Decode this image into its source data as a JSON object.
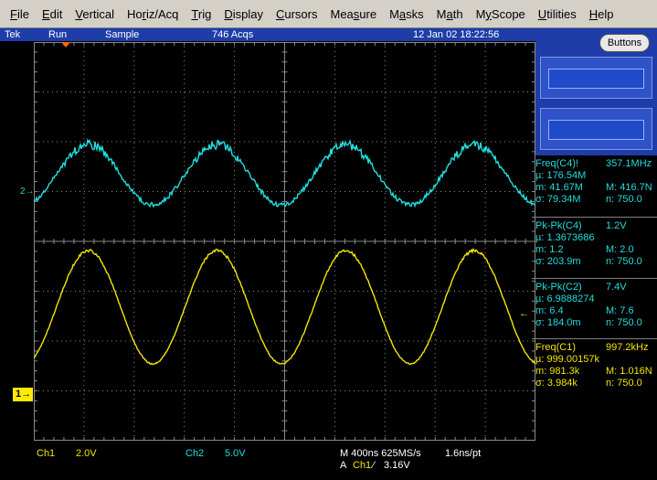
{
  "menu": [
    {
      "label": "File",
      "u": "F",
      "rest": "ile"
    },
    {
      "label": "Edit",
      "u": "E",
      "rest": "dit"
    },
    {
      "label": "Vertical",
      "u": "V",
      "rest": "ertical"
    },
    {
      "label": "Horiz/Acq",
      "pre": "Ho",
      "u": "r",
      "rest": "iz/Acq"
    },
    {
      "label": "Trig",
      "u": "T",
      "rest": "rig"
    },
    {
      "label": "Display",
      "u": "D",
      "rest": "isplay"
    },
    {
      "label": "Cursors",
      "u": "C",
      "rest": "ursors"
    },
    {
      "label": "Measure",
      "pre": "Mea",
      "u": "s",
      "rest": "ure"
    },
    {
      "label": "Masks",
      "pre": "M",
      "u": "a",
      "rest": "sks"
    },
    {
      "label": "Math",
      "pre": "M",
      "u": "a",
      "rest": "th"
    },
    {
      "label": "MyScope",
      "pre": "M",
      "u": "y",
      "rest": "Scope"
    },
    {
      "label": "Utilities",
      "u": "U",
      "rest": "tilities"
    },
    {
      "label": "Help",
      "u": "H",
      "rest": "elp"
    }
  ],
  "status": {
    "brand": "Tek",
    "run_state": "Run",
    "acq_mode": "Sample",
    "acq_count": "746 Acqs",
    "timestamp": "12 Jan 02 18:22:56"
  },
  "buttons_label": "Buttons",
  "markers": {
    "ch2": "2",
    "ch1": "1"
  },
  "measurements": [
    {
      "name": "Freq(C4)!",
      "value": "357.1MHz",
      "mu": "µ: 176.54M",
      "m_min": "m: 41.67M",
      "m_max": "M: 416.7N",
      "sigma": "σ: 79.34M",
      "n": "n: 750.0",
      "color": "#22dddd"
    },
    {
      "name": "Pk-Pk(C4)",
      "value": "1.2V",
      "mu": "µ: 1.3673686",
      "m_min": "m: 1.2",
      "m_max": "M: 2.0",
      "sigma": "σ: 203.9m",
      "n": "n: 750.0",
      "color": "#22dddd"
    },
    {
      "name": "Pk-Pk(C2)",
      "value": "7.4V",
      "mu": "µ: 6.9888274",
      "m_min": "m: 6.4",
      "m_max": "M: 7.6",
      "sigma": "σ: 184.0m",
      "n": "n: 750.0",
      "color": "#22dddd"
    },
    {
      "name": "Freq(C1)",
      "value": "997.2kHz",
      "mu": "µ: 999.00157k",
      "m_min": "m: 981.3k",
      "m_max": "M: 1.016N",
      "sigma": "σ: 3.984k",
      "n": "n: 750.0",
      "color": "#f2e600"
    }
  ],
  "readout": {
    "ch1_label": "Ch1",
    "ch1_scale": "2.0V",
    "ch2_label": "Ch2",
    "ch2_scale": "5.0V",
    "timebase": "M 400ns 625MS/s",
    "resolution": "1.6ns/pt",
    "trigger_prefix": "A",
    "trigger_source": "Ch1",
    "trigger_slope": "⁄",
    "trigger_level": "3.16V"
  },
  "waveforms": {
    "cycles_visible": 3.9,
    "ch2_color": "#22dddd",
    "ch1_color": "#f2e600"
  }
}
